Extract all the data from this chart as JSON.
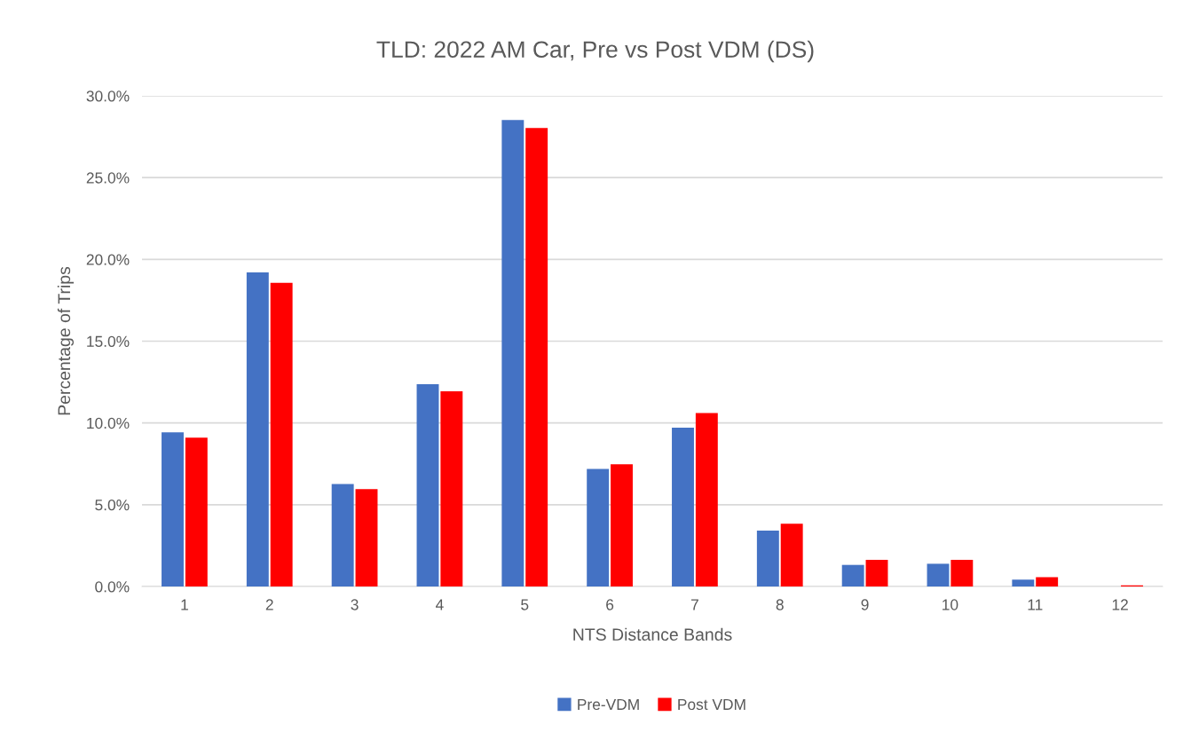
{
  "chart_data": {
    "type": "bar",
    "title": "TLD: 2022 AM Car, Pre vs Post VDM (DS)",
    "xlabel": "NTS Distance Bands",
    "ylabel": "Percentage of Trips",
    "categories": [
      "1",
      "2",
      "3",
      "4",
      "5",
      "6",
      "7",
      "8",
      "9",
      "10",
      "11",
      "12"
    ],
    "series": [
      {
        "name": "Pre-VDM",
        "color": "#4472c4",
        "values": [
          9.43,
          19.2,
          6.26,
          12.37,
          28.52,
          7.19,
          9.71,
          3.42,
          1.32,
          1.39,
          0.42,
          0
        ]
      },
      {
        "name": "Post VDM",
        "color": "#ff0000",
        "values": [
          9.1,
          18.57,
          5.96,
          11.94,
          28.04,
          7.47,
          10.6,
          3.84,
          1.63,
          1.63,
          0.57,
          0.07
        ]
      }
    ],
    "ylim": [
      0,
      30
    ],
    "yticks": [
      {
        "value": 0,
        "label": "0.0%"
      },
      {
        "value": 5,
        "label": "5.0%"
      },
      {
        "value": 10,
        "label": "10.0%"
      },
      {
        "value": 15,
        "label": "15.0%"
      },
      {
        "value": 20,
        "label": "20.0%"
      },
      {
        "value": 25,
        "label": "25.0%"
      },
      {
        "value": 30,
        "label": "30.0%"
      }
    ],
    "grid": "y",
    "legend": "bottom"
  }
}
